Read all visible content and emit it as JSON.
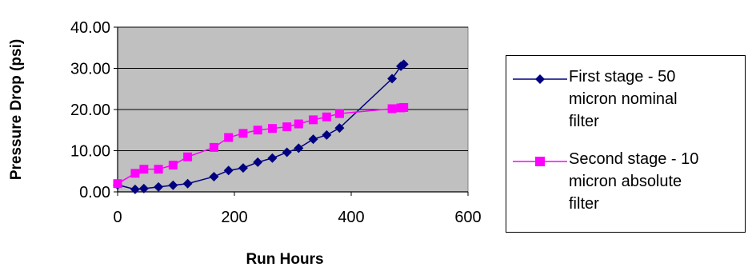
{
  "chart_data": {
    "type": "line",
    "xlabel": "Run Hours",
    "ylabel": "Pressure Drop (psi)",
    "xlim": [
      0,
      600
    ],
    "ylim": [
      0,
      40
    ],
    "x_ticks": [
      "0",
      "200",
      "400",
      "600"
    ],
    "y_ticks": [
      "0.00",
      "10.00",
      "20.00",
      "30.00",
      "40.00"
    ],
    "grid": "horizontal",
    "plot_background": "#c0c0c0",
    "legend_position": "right",
    "series": [
      {
        "name": "First stage - 50 micron nominal filter",
        "color": "#000080",
        "marker": "diamond",
        "x": [
          0,
          30,
          45,
          70,
          95,
          120,
          165,
          190,
          215,
          240,
          265,
          290,
          310,
          335,
          358,
          380,
          470,
          485,
          490
        ],
        "y": [
          1.7,
          0.6,
          0.8,
          1.2,
          1.6,
          2.0,
          3.7,
          5.2,
          5.8,
          7.2,
          8.2,
          9.6,
          10.6,
          12.8,
          13.8,
          15.5,
          27.5,
          30.5,
          31.0
        ]
      },
      {
        "name": "Second stage - 10 micron absolute filter",
        "color": "#ff00ff",
        "marker": "square",
        "x": [
          0,
          30,
          45,
          70,
          95,
          120,
          165,
          190,
          215,
          240,
          265,
          290,
          310,
          335,
          358,
          380,
          470,
          485,
          490
        ],
        "y": [
          2.0,
          4.5,
          5.5,
          5.5,
          6.5,
          8.5,
          10.8,
          13.2,
          14.2,
          15.0,
          15.4,
          15.8,
          16.5,
          17.5,
          18.2,
          19.0,
          20.2,
          20.4,
          20.5
        ]
      }
    ]
  },
  "legend": {
    "items": [
      {
        "label": "First stage - 50\nmicron nominal\nfilter",
        "color": "#000080",
        "marker": "diamond"
      },
      {
        "label": "Second stage - 10\nmicron absolute\nfilter",
        "color": "#ff00ff",
        "marker": "square"
      }
    ]
  }
}
